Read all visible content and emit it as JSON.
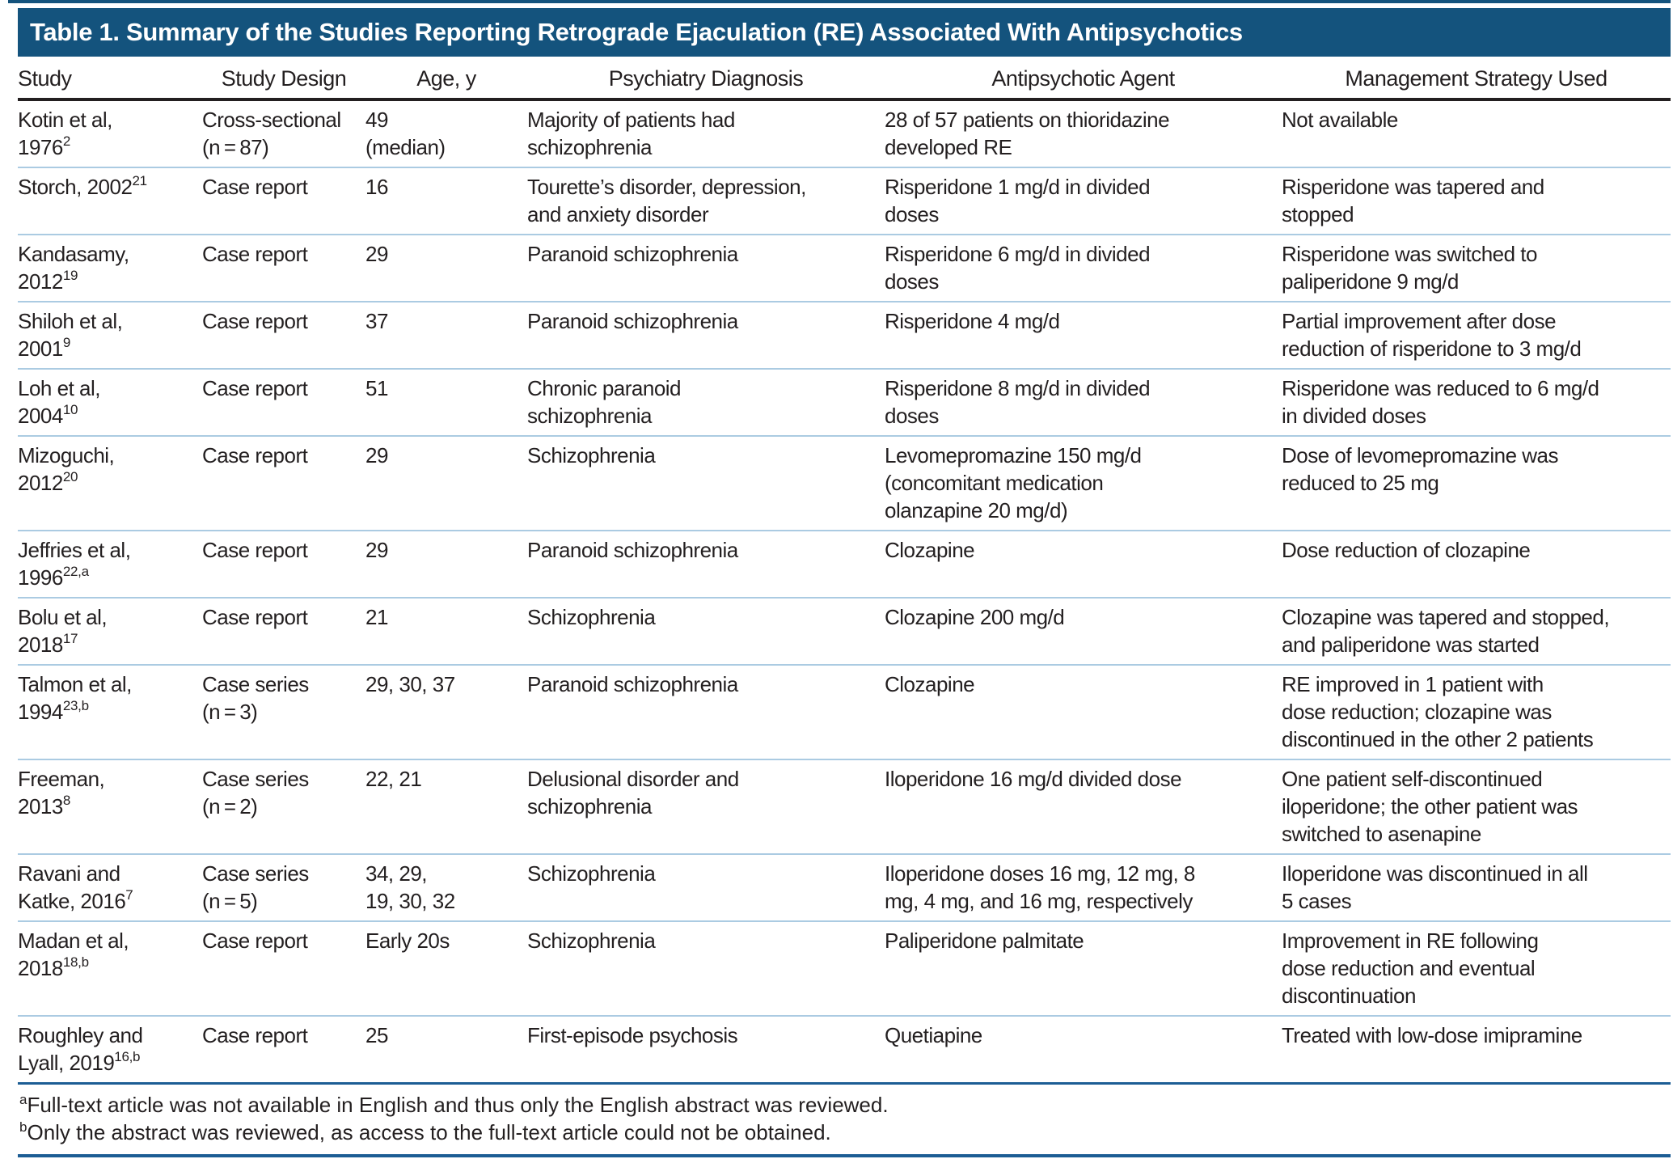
{
  "title": "Table 1. Summary of the Studies Reporting Retrograde Ejaculation (RE) Associated With Antipsychotics",
  "columns": [
    "Study",
    "Study Design",
    "Age, y",
    "Psychiatry Diagnosis",
    "Antipsychotic Agent",
    "Management Strategy Used"
  ],
  "rows": [
    {
      "study": "Kotin et al,\n1976",
      "study_sup": "2",
      "design": "Cross-sectional\n(n = 87)",
      "age": "49\n(median)",
      "diagnosis": "Majority of patients had\nschizophrenia",
      "agent": "28 of 57 patients on thioridazine\ndeveloped RE",
      "management": "Not available"
    },
    {
      "study": "Storch, 2002",
      "study_sup": "21",
      "design": "Case report",
      "age": "16",
      "diagnosis": "Tourette’s disorder, depression,\nand anxiety disorder",
      "agent": "Risperidone 1 mg/d in divided\ndoses",
      "management": "Risperidone was tapered and\nstopped"
    },
    {
      "study": "Kandasamy,\n2012",
      "study_sup": "19",
      "design": "Case report",
      "age": "29",
      "diagnosis": "Paranoid schizophrenia",
      "agent": "Risperidone 6 mg/d in divided\ndoses",
      "management": "Risperidone was switched to\npaliperidone 9 mg/d"
    },
    {
      "study": "Shiloh et al,\n2001",
      "study_sup": "9",
      "design": "Case report",
      "age": "37",
      "diagnosis": "Paranoid schizophrenia",
      "agent": "Risperidone 4 mg/d",
      "management": "Partial improvement after dose\nreduction of risperidone to 3 mg/d"
    },
    {
      "study": "Loh et al,\n2004",
      "study_sup": "10",
      "design": "Case report",
      "age": "51",
      "diagnosis": "Chronic paranoid\nschizophrenia",
      "agent": "Risperidone 8 mg/d in divided\ndoses",
      "management": "Risperidone was reduced to 6 mg/d\nin divided doses"
    },
    {
      "study": "Mizoguchi,\n2012",
      "study_sup": "20",
      "design": "Case report",
      "age": "29",
      "diagnosis": "Schizophrenia",
      "agent": "Levomepromazine 150 mg/d\n(concomitant medication\nolanzapine 20 mg/d)",
      "management": "Dose of levomepromazine was\nreduced to 25 mg"
    },
    {
      "study": "Jeffries et al,\n1996",
      "study_sup": "22,a",
      "design": "Case report",
      "age": "29",
      "diagnosis": "Paranoid schizophrenia",
      "agent": "Clozapine",
      "management": "Dose reduction of clozapine"
    },
    {
      "study": "Bolu et al,\n2018",
      "study_sup": "17",
      "design": "Case report",
      "age": "21",
      "diagnosis": "Schizophrenia",
      "agent": "Clozapine 200 mg/d",
      "management": "Clozapine was tapered and stopped,\nand paliperidone was started"
    },
    {
      "study": "Talmon et al,\n1994",
      "study_sup": "23,b",
      "design": "Case series\n(n = 3)",
      "age": "29, 30, 37",
      "diagnosis": "Paranoid schizophrenia",
      "agent": "Clozapine",
      "management": "RE improved in 1 patient with\ndose reduction; clozapine was\ndiscontinued in the other 2 patients"
    },
    {
      "study": "Freeman,\n2013",
      "study_sup": "8",
      "design": "Case series\n(n = 2)",
      "age": "22, 21",
      "diagnosis": "Delusional disorder and\nschizophrenia",
      "agent": "Iloperidone 16 mg/d divided dose",
      "management": "One patient self-discontinued\niloperidone; the other patient was\nswitched to asenapine"
    },
    {
      "study": "Ravani and\nKatke, 2016",
      "study_sup": "7",
      "design": "Case series\n(n = 5)",
      "age": "34, 29,\n19, 30, 32",
      "diagnosis": "Schizophrenia",
      "agent": "Iloperidone doses 16 mg, 12 mg, 8\nmg, 4 mg, and 16 mg, respectively",
      "management": "Iloperidone was discontinued in all\n5 cases"
    },
    {
      "study": "Madan et al,\n2018",
      "study_sup": "18,b",
      "design": "Case report",
      "age": "Early 20s",
      "diagnosis": "Schizophrenia",
      "agent": "Paliperidone palmitate",
      "management": "Improvement in RE following\ndose reduction and eventual\ndiscontinuation"
    },
    {
      "study": "Roughley and\nLyall, 2019",
      "study_sup": "16,b",
      "design": "Case report",
      "age": "25",
      "diagnosis": "First-episode psychosis",
      "agent": "Quetiapine",
      "management": "Treated with low-dose imipramine"
    }
  ],
  "footnotes": [
    {
      "sup": "a",
      "text": "Full-text article was not available in English and thus only the English abstract was reviewed."
    },
    {
      "sup": "b",
      "text": "Only the abstract was reviewed, as access to the full-text article could not be obtained."
    }
  ],
  "colors": {
    "title_bar_background": "#14537d",
    "title_text": "#ffffff",
    "header_underline": "#231f20",
    "row_divider": "#abcbe2",
    "section_rule": "#1c5d94",
    "body_text": "#231f20"
  }
}
